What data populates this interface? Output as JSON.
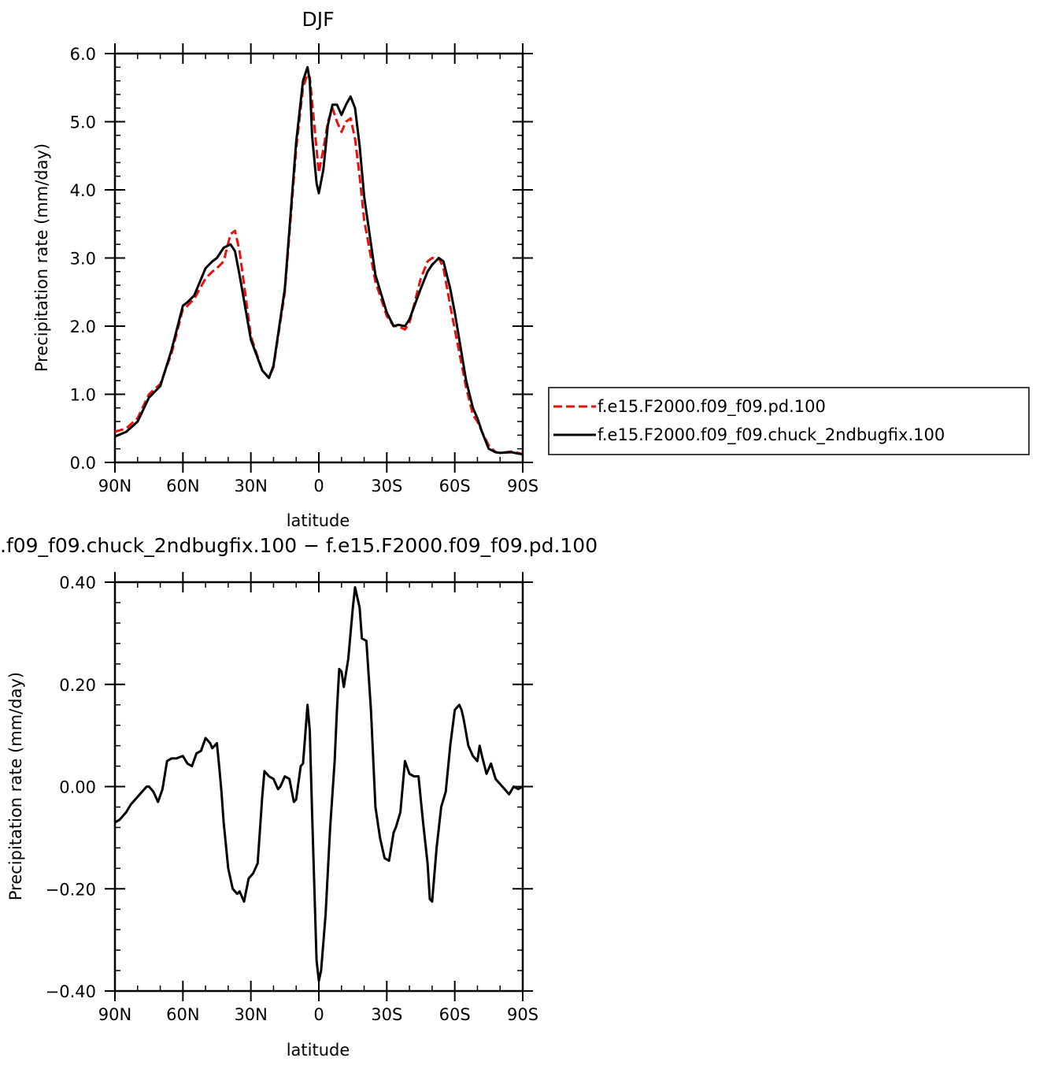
{
  "chart_data": [
    {
      "type": "line",
      "title": "DJF",
      "xlabel": "latitude",
      "ylabel": "Precipitation rate (mm/day)",
      "x_ticks": [
        -90,
        -60,
        -30,
        0,
        30,
        60,
        90
      ],
      "x_tick_labels": [
        "90N",
        "60N",
        "30N",
        "0",
        "30S",
        "60S",
        "90S"
      ],
      "xlim": [
        -90,
        90
      ],
      "ylim": [
        0,
        6
      ],
      "y_ticks": [
        0,
        1,
        2,
        3,
        4,
        5,
        6
      ],
      "y_tick_labels": [
        "0.0",
        "1.0",
        "2.0",
        "3.0",
        "4.0",
        "5.0",
        "6.0"
      ],
      "legend_position": "right",
      "series": [
        {
          "name": "f.e15.F2000.f09_f09.pd.100",
          "color": "#e8110f",
          "style": "dashed",
          "x": [
            -90,
            -85,
            -80,
            -75,
            -70,
            -65,
            -60,
            -58,
            -55,
            -50,
            -47,
            -45,
            -42,
            -39,
            -37,
            -35,
            -30,
            -25,
            -22,
            -20,
            -15,
            -10,
            -7,
            -5,
            -4,
            -3,
            -1,
            0,
            2,
            4,
            6,
            8,
            10,
            12,
            14,
            16,
            18,
            20,
            25,
            30,
            33,
            35,
            38,
            40,
            45,
            48,
            50,
            53,
            55,
            58,
            60,
            65,
            68,
            70,
            72,
            75,
            78,
            80,
            85,
            88,
            90
          ],
          "y": [
            0.45,
            0.5,
            0.65,
            1.0,
            1.15,
            1.6,
            2.25,
            2.3,
            2.4,
            2.7,
            2.8,
            2.85,
            2.95,
            3.35,
            3.4,
            3.1,
            1.85,
            1.35,
            1.24,
            1.4,
            2.5,
            4.6,
            5.5,
            5.7,
            5.65,
            5.3,
            4.6,
            4.25,
            4.6,
            5.0,
            5.2,
            5.0,
            4.85,
            5.0,
            5.05,
            4.75,
            4.2,
            3.55,
            2.65,
            2.15,
            2.0,
            2.0,
            1.95,
            2.05,
            2.7,
            2.95,
            3.0,
            3.0,
            2.85,
            2.3,
            1.95,
            1.1,
            0.7,
            0.6,
            0.45,
            0.25,
            0.15,
            0.14,
            0.16,
            0.14,
            0.12
          ]
        },
        {
          "name": "f.e15.F2000.f09_f09.chuck_2ndbugfix.100",
          "color": "#000000",
          "style": "solid",
          "x": [
            -90,
            -85,
            -80,
            -75,
            -70,
            -65,
            -60,
            -58,
            -55,
            -50,
            -47,
            -45,
            -42,
            -39,
            -37,
            -35,
            -30,
            -25,
            -22,
            -20,
            -15,
            -10,
            -7,
            -5,
            -4,
            -3,
            -1,
            0,
            2,
            4,
            6,
            8,
            10,
            12,
            14,
            16,
            18,
            20,
            25,
            30,
            33,
            35,
            38,
            40,
            45,
            48,
            50,
            53,
            55,
            58,
            60,
            65,
            68,
            70,
            72,
            75,
            78,
            80,
            85,
            88,
            90
          ],
          "y": [
            0.38,
            0.45,
            0.6,
            0.95,
            1.12,
            1.65,
            2.3,
            2.35,
            2.45,
            2.85,
            2.95,
            3.0,
            3.15,
            3.2,
            3.1,
            2.75,
            1.8,
            1.35,
            1.24,
            1.42,
            2.55,
            4.7,
            5.6,
            5.8,
            5.6,
            4.8,
            4.1,
            3.95,
            4.3,
            4.95,
            5.25,
            5.25,
            5.1,
            5.25,
            5.37,
            5.2,
            4.65,
            3.9,
            2.75,
            2.2,
            2.0,
            2.02,
            2.0,
            2.1,
            2.55,
            2.8,
            2.9,
            3.0,
            2.95,
            2.55,
            2.2,
            1.2,
            0.8,
            0.65,
            0.45,
            0.2,
            0.15,
            0.14,
            0.15,
            0.13,
            0.12
          ]
        }
      ]
    },
    {
      "type": "line",
      "title": ".f09_f09.chuck_2ndbugfix.100 − f.e15.F2000.f09_f09.pd.100",
      "xlabel": "latitude",
      "ylabel": "Precipitation rate (mm/day)",
      "x_ticks": [
        -90,
        -60,
        -30,
        0,
        30,
        60,
        90
      ],
      "x_tick_labels": [
        "90N",
        "60N",
        "30N",
        "0",
        "30S",
        "60S",
        "90S"
      ],
      "xlim": [
        -90,
        90
      ],
      "ylim": [
        -0.4,
        0.4
      ],
      "y_ticks": [
        -0.4,
        -0.2,
        0,
        0.2,
        0.4
      ],
      "y_tick_labels": [
        "−0.40",
        "−0.20",
        "0.00",
        "0.20",
        "0.40"
      ],
      "series": [
        {
          "color": "#000000",
          "style": "solid",
          "x": [
            -90,
            -88,
            -85,
            -83,
            -80,
            -78,
            -76,
            -75,
            -73,
            -71,
            -69,
            -67,
            -65,
            -63,
            -60,
            -58,
            -56,
            -54,
            -52,
            -50,
            -48,
            -47,
            -45,
            -44,
            -43,
            -42,
            -40,
            -38,
            -36,
            -35,
            -33,
            -31,
            -29,
            -27,
            -25,
            -24,
            -22,
            -20,
            -18,
            -17,
            -15,
            -13,
            -11,
            -10,
            -8,
            -7,
            -6,
            -5,
            -4,
            -3,
            -1,
            0,
            1,
            3,
            5,
            7,
            8,
            9,
            10,
            11,
            13,
            15,
            16,
            18,
            19,
            21,
            23,
            25,
            27,
            29,
            31,
            33,
            34,
            36,
            38,
            40,
            42,
            44,
            46,
            48,
            49,
            50,
            52,
            54,
            56,
            58,
            60,
            62,
            63,
            64,
            66,
            67,
            68,
            70,
            71,
            72,
            74,
            76,
            78,
            80,
            82,
            84,
            86,
            88,
            90
          ],
          "y": [
            -0.07,
            -0.065,
            -0.05,
            -0.035,
            -0.02,
            -0.01,
            0,
            0.0,
            -0.01,
            -0.03,
            -0.005,
            0.05,
            0.055,
            0.055,
            0.06,
            0.045,
            0.04,
            0.065,
            0.07,
            0.095,
            0.085,
            0.075,
            0.085,
            0.04,
            -0.01,
            -0.07,
            -0.16,
            -0.2,
            -0.21,
            -0.205,
            -0.225,
            -0.18,
            -0.17,
            -0.15,
            -0.02,
            0.03,
            0.02,
            0.015,
            -0.005,
            0.0,
            0.02,
            0.015,
            -0.03,
            -0.025,
            0.04,
            0.045,
            0.1,
            0.16,
            0.11,
            -0.05,
            -0.34,
            -0.38,
            -0.36,
            -0.25,
            -0.08,
            0.05,
            0.15,
            0.23,
            0.225,
            0.195,
            0.25,
            0.35,
            0.39,
            0.35,
            0.29,
            0.285,
            0.15,
            -0.04,
            -0.1,
            -0.14,
            -0.145,
            -0.09,
            -0.08,
            -0.05,
            0.05,
            0.025,
            0.02,
            0.02,
            -0.07,
            -0.15,
            -0.22,
            -0.225,
            -0.12,
            -0.04,
            -0.01,
            0.08,
            0.15,
            0.16,
            0.15,
            0.13,
            0.08,
            0.07,
            0.06,
            0.05,
            0.08,
            0.06,
            0.025,
            0.045,
            0.015,
            0.005,
            -0.005,
            -0.015,
            0.0,
            -0.005,
            0.0
          ]
        }
      ]
    }
  ]
}
